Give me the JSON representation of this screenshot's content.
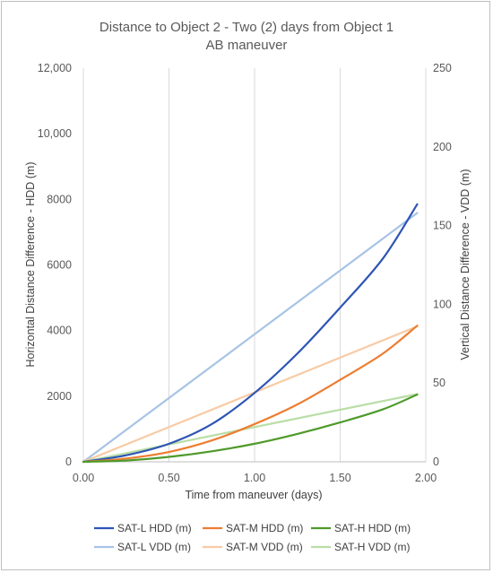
{
  "chart_data": {
    "type": "line",
    "title": "Distance to Object 2 - Two (2) days from Object 1",
    "subtitle": "AB maneuver",
    "xlabel": "Time from maneuver (days)",
    "ylabel_left": "Horizontal Distance Difference - HDD (m)",
    "ylabel_right": "Vertical Distance Difference - VDD (m)",
    "xlim": [
      0,
      2
    ],
    "ylim_left": [
      0,
      12000
    ],
    "ylim_right": [
      0,
      250
    ],
    "x_ticks": [
      "0.00",
      "0.50",
      "1.00",
      "1.50",
      "2.00"
    ],
    "y_left_ticks": [
      "0",
      "2000",
      "4000",
      "6000",
      "8000",
      "10,000",
      "12,000"
    ],
    "y_right_ticks": [
      "0",
      "50",
      "100",
      "150",
      "200",
      "250"
    ],
    "grid": "vertical",
    "legend_position": "bottom",
    "series": [
      {
        "name": "SAT-L HDD (m)",
        "axis": "left",
        "color": "#2e55b5",
        "x": [
          0,
          0.25,
          0.5,
          0.75,
          1.0,
          1.25,
          1.5,
          1.75,
          1.95
        ],
        "y": [
          0,
          200,
          550,
          1150,
          2100,
          3300,
          4700,
          6200,
          7850
        ]
      },
      {
        "name": "SAT-M HDD (m)",
        "axis": "left",
        "color": "#ed7d31",
        "x": [
          0,
          0.25,
          0.5,
          0.75,
          1.0,
          1.25,
          1.5,
          1.75,
          1.95
        ],
        "y": [
          0,
          100,
          300,
          650,
          1150,
          1750,
          2500,
          3300,
          4150
        ]
      },
      {
        "name": "SAT-H HDD (m)",
        "axis": "left",
        "color": "#4e9a2a",
        "x": [
          0,
          0.25,
          0.5,
          0.75,
          1.0,
          1.25,
          1.5,
          1.75,
          1.95
        ],
        "y": [
          0,
          40,
          150,
          320,
          550,
          850,
          1200,
          1600,
          2050
        ]
      },
      {
        "name": "SAT-L VDD (m)",
        "axis": "right",
        "color": "#a8c3e6",
        "x": [
          0,
          1.95
        ],
        "y": [
          0,
          158
        ]
      },
      {
        "name": "SAT-M VDD (m)",
        "axis": "right",
        "color": "#f8cba5",
        "x": [
          0,
          1.95
        ],
        "y": [
          0,
          86
        ]
      },
      {
        "name": "SAT-H VDD (m)",
        "axis": "right",
        "color": "#b9dea6",
        "x": [
          0,
          1.95
        ],
        "y": [
          0,
          43
        ]
      }
    ]
  }
}
